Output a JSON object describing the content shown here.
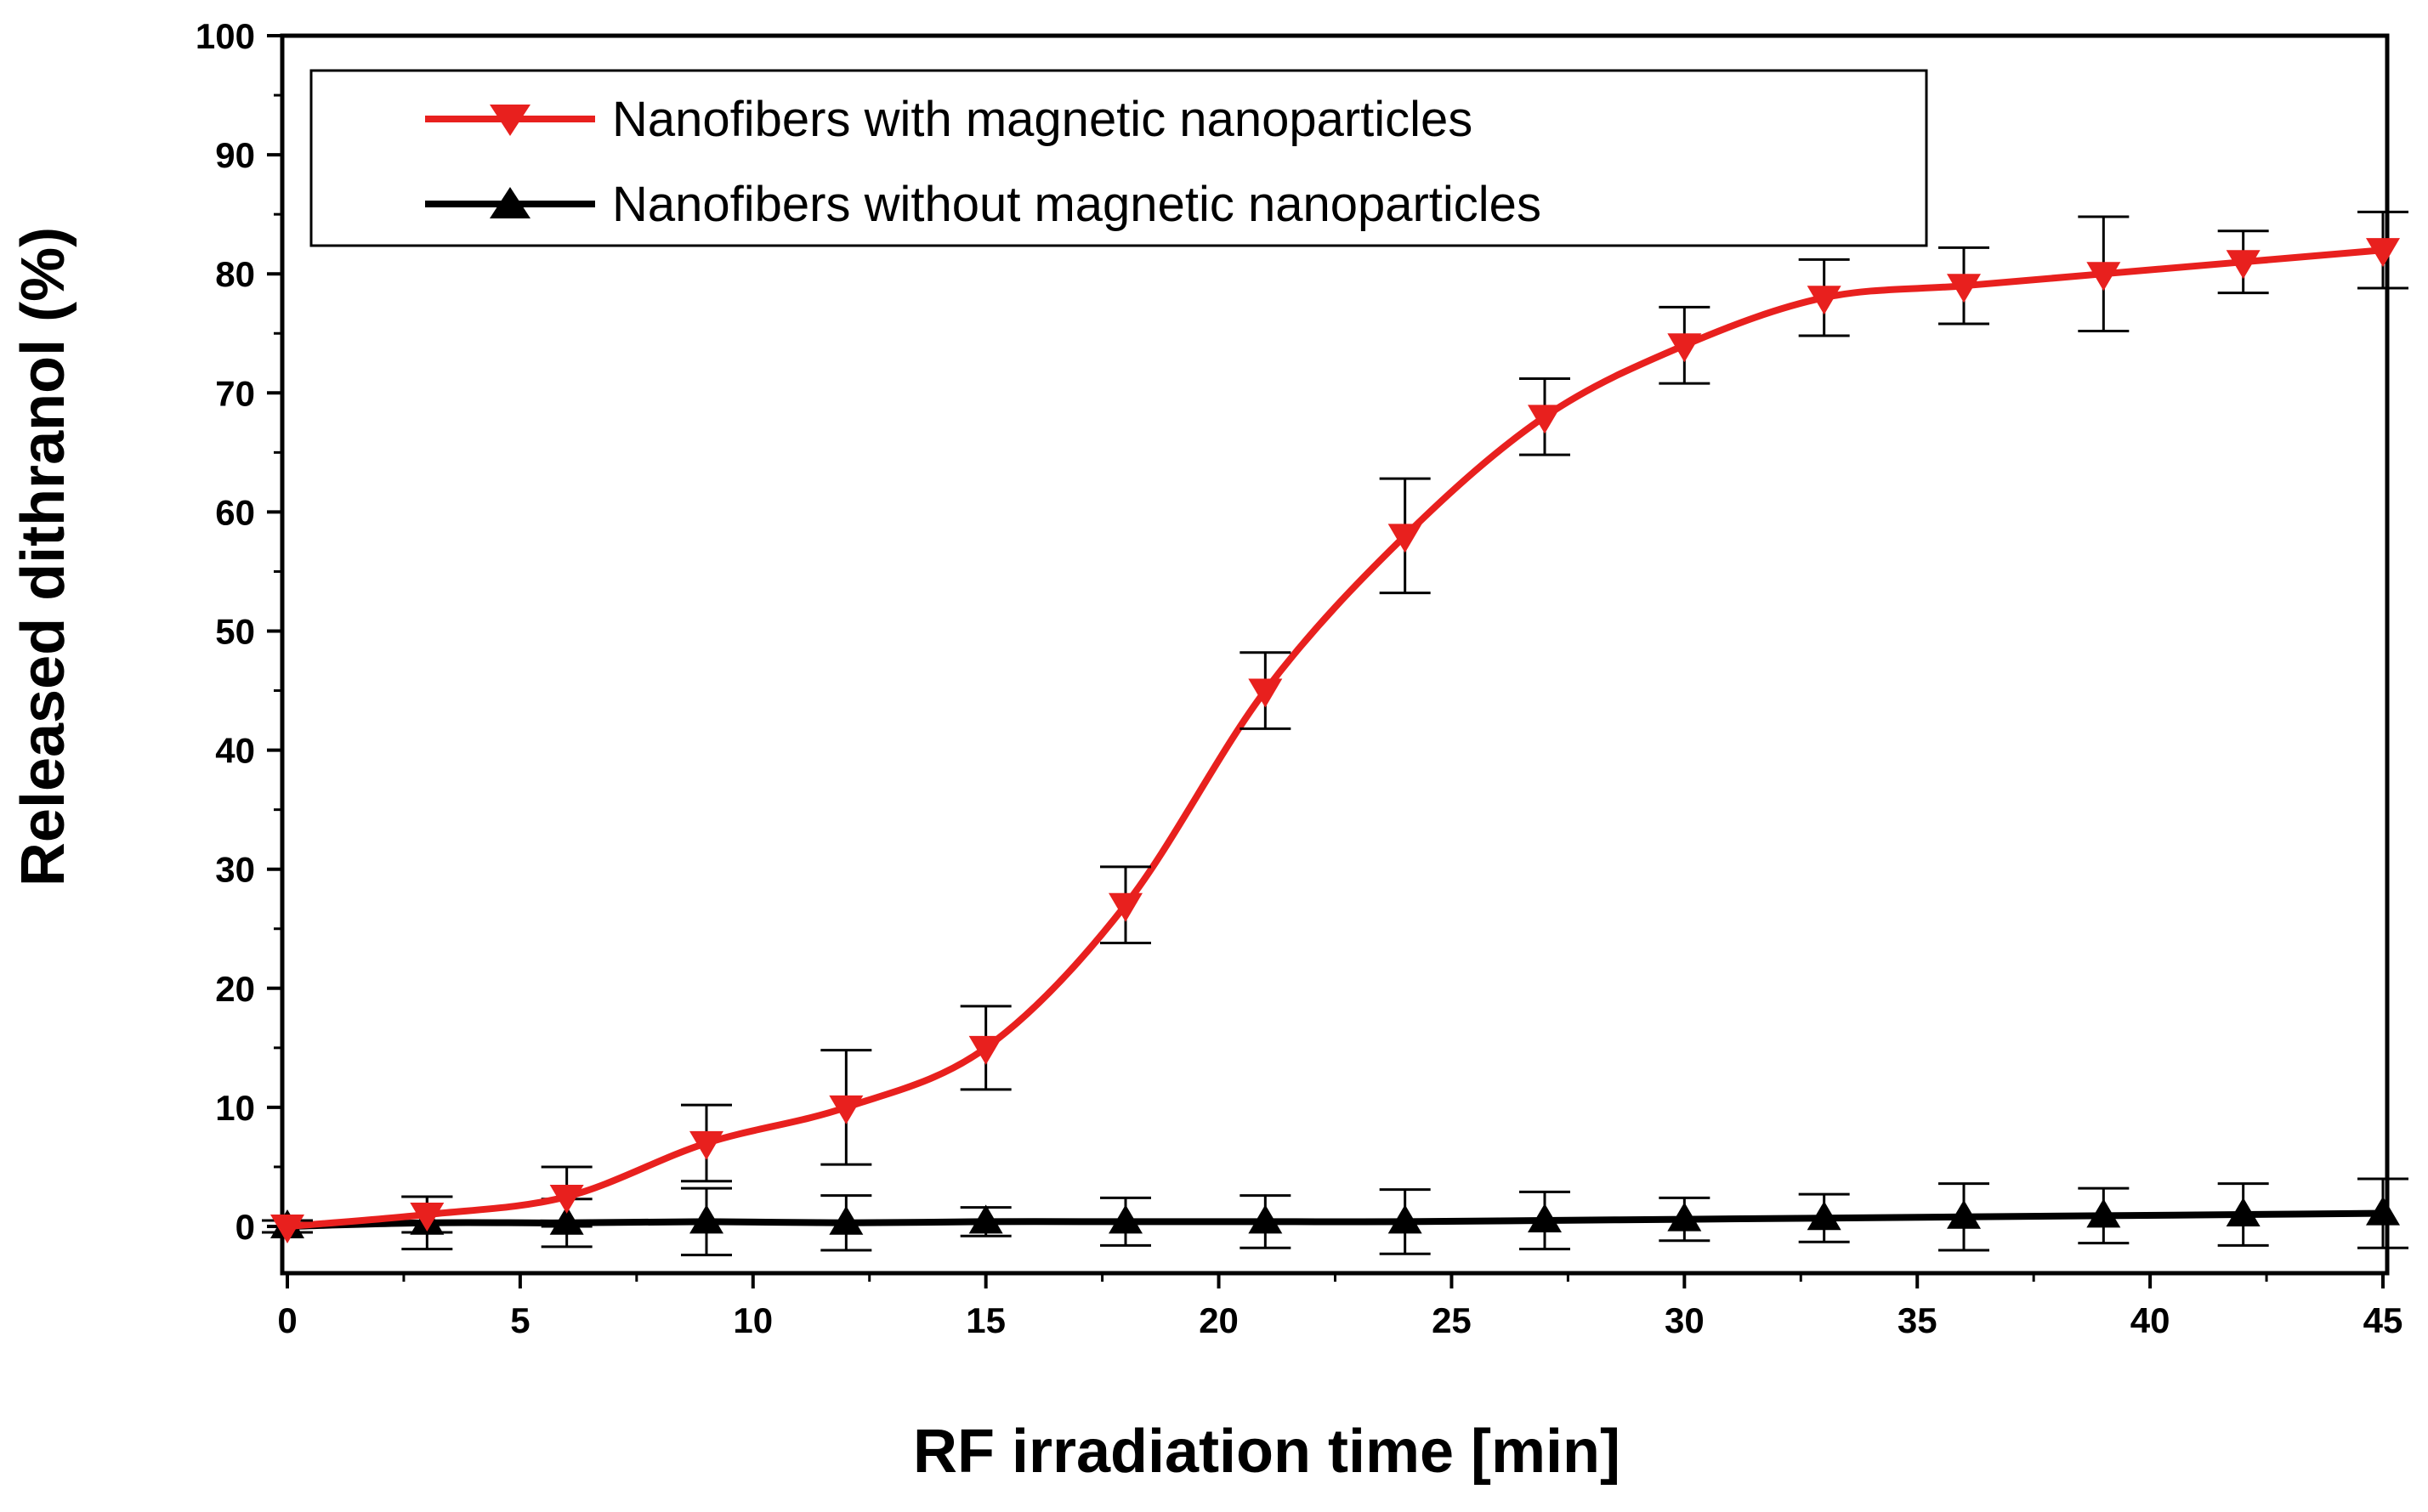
{
  "chart_data": {
    "type": "line",
    "title": "",
    "xlabel": "RF irradiation time [min]",
    "ylabel": "Released dithranol (%)",
    "xlim": [
      0,
      45
    ],
    "ylim": [
      -4,
      100
    ],
    "x_ticks": [
      0,
      5,
      10,
      15,
      20,
      25,
      30,
      35,
      40,
      45
    ],
    "y_ticks": [
      0,
      10,
      20,
      30,
      40,
      50,
      60,
      70,
      80,
      90,
      100
    ],
    "grid": false,
    "legend_position": "top-left",
    "x": [
      0,
      3,
      6,
      9,
      12,
      15,
      18,
      21,
      24,
      27,
      30,
      33,
      36,
      39,
      42,
      45
    ],
    "series": [
      {
        "name": "Nanofibers with magnetic nanoparticles",
        "color": "#e8201e",
        "marker": "triangle-down",
        "values": [
          0,
          1,
          2.5,
          7,
          10,
          15,
          27,
          45,
          58,
          68,
          74,
          78,
          79,
          80,
          81,
          82
        ],
        "errors": [
          0.5,
          1.5,
          2.5,
          3.2,
          4.8,
          3.5,
          3.2,
          3.2,
          4.8,
          3.2,
          3.2,
          3.2,
          3.2,
          4.8,
          2.6,
          3.2
        ]
      },
      {
        "name": "Nanofibers without magnetic nanoparticles",
        "color": "#000000",
        "marker": "triangle-up",
        "values": [
          0,
          0.3,
          0.3,
          0.4,
          0.3,
          0.4,
          0.4,
          0.4,
          0.4,
          0.5,
          0.6,
          0.7,
          0.8,
          0.9,
          1.0,
          1.1
        ],
        "errors": [
          0.5,
          2.2,
          2.0,
          2.8,
          2.3,
          1.2,
          2.0,
          2.2,
          2.7,
          2.4,
          1.8,
          2.0,
          2.8,
          2.3,
          2.6,
          2.9
        ]
      }
    ]
  }
}
